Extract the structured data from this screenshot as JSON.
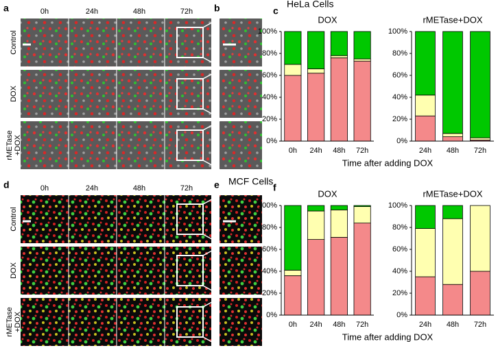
{
  "hela": {
    "heading": "HeLa Cells",
    "panels": [
      "a",
      "b",
      "c"
    ],
    "columns": [
      "0h",
      "24h",
      "48h",
      "72h"
    ],
    "rows": [
      [
        "Control"
      ],
      [
        "DOX"
      ],
      [
        "rMETase",
        "+DOX"
      ]
    ]
  },
  "mcf": {
    "heading": "MCF Cells",
    "panels": [
      "d",
      "e",
      "f"
    ],
    "columns": [
      "0h",
      "24h",
      "48h",
      "72h"
    ],
    "rows": [
      [
        "Control"
      ],
      [
        "DOX"
      ],
      [
        "rMETase",
        "+DOX"
      ]
    ]
  },
  "chart_data": [
    {
      "type": "stacked_bar",
      "title": "DOX",
      "categories": [
        "0h",
        "24h",
        "48h",
        "72h"
      ],
      "series": [
        {
          "color": "#f4898a",
          "values": [
            60,
            62,
            76,
            73
          ]
        },
        {
          "color": "#ffffb0",
          "values": [
            10,
            4,
            2,
            2
          ]
        },
        {
          "color": "#00c800",
          "values": [
            30,
            34,
            22,
            25
          ]
        }
      ],
      "ylim": [
        0,
        100
      ],
      "yticks": [
        {
          "value": 0,
          "label": "0%"
        },
        {
          "value": 20,
          "label": "20%"
        },
        {
          "value": 40,
          "label": "40%"
        },
        {
          "value": 60,
          "label": "60%"
        },
        {
          "value": 80,
          "label": "80%"
        },
        {
          "value": 100,
          "label": "100%"
        }
      ],
      "x_label": "Time after adding DOX"
    },
    {
      "type": "stacked_bar",
      "title": "rMETase+DOX",
      "categories": [
        "24h",
        "48h",
        "72h"
      ],
      "series": [
        {
          "color": "#f4898a",
          "values": [
            23,
            4,
            1
          ]
        },
        {
          "color": "#ffffb0",
          "values": [
            19,
            3,
            2
          ]
        },
        {
          "color": "#00c800",
          "values": [
            58,
            93,
            97
          ]
        }
      ],
      "ylim": [
        0,
        100
      ],
      "yticks": [
        {
          "value": 0,
          "label": "0%"
        },
        {
          "value": 20,
          "label": "20%"
        },
        {
          "value": 40,
          "label": "40%"
        },
        {
          "value": 60,
          "label": "60%"
        },
        {
          "value": 80,
          "label": "80%"
        },
        {
          "value": 100,
          "label": "100%"
        }
      ]
    },
    {
      "type": "stacked_bar",
      "title": "DOX",
      "categories": [
        "0h",
        "24h",
        "48h",
        "72h"
      ],
      "series": [
        {
          "color": "#f4898a",
          "values": [
            36,
            69,
            71,
            84
          ]
        },
        {
          "color": "#ffffb0",
          "values": [
            5,
            26,
            25,
            15
          ]
        },
        {
          "color": "#00c800",
          "values": [
            59,
            5,
            4,
            1
          ]
        }
      ],
      "ylim": [
        0,
        100
      ],
      "yticks": [
        {
          "value": 0,
          "label": "0%"
        },
        {
          "value": 20,
          "label": "20%"
        },
        {
          "value": 40,
          "label": "40%"
        },
        {
          "value": 60,
          "label": "60%"
        },
        {
          "value": 80,
          "label": "80%"
        },
        {
          "value": 100,
          "label": "100%"
        }
      ],
      "x_label": "Time after adding DOX"
    },
    {
      "type": "stacked_bar",
      "title": "rMETase+DOX",
      "categories": [
        "24h",
        "48h",
        "72h"
      ],
      "series": [
        {
          "color": "#f4898a",
          "values": [
            35,
            28,
            40
          ]
        },
        {
          "color": "#ffffb0",
          "values": [
            44,
            60,
            60
          ]
        },
        {
          "color": "#00c800",
          "values": [
            21,
            12,
            0
          ]
        }
      ],
      "ylim": [
        0,
        100
      ],
      "yticks": [
        {
          "value": 0,
          "label": "0%"
        },
        {
          "value": 20,
          "label": "20%"
        },
        {
          "value": 40,
          "label": "40%"
        },
        {
          "value": 60,
          "label": "60%"
        },
        {
          "value": 80,
          "label": "80%"
        },
        {
          "value": 100,
          "label": "100%"
        }
      ]
    }
  ]
}
